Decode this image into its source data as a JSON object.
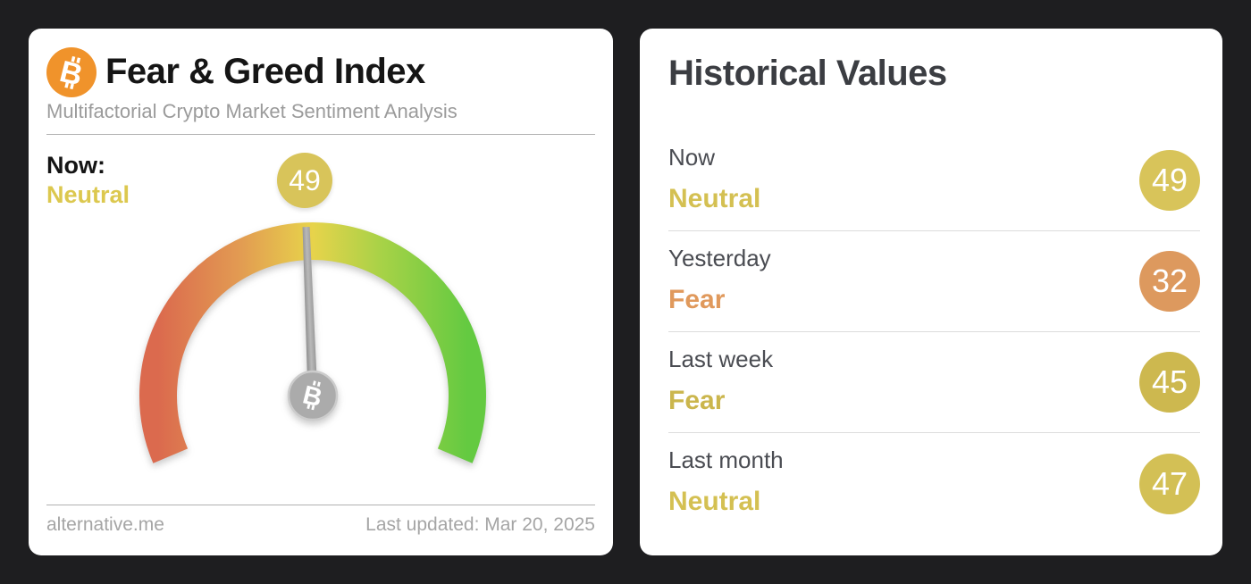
{
  "left_card": {
    "title": "Fear & Greed Index",
    "subtitle": "Multifactorial Crypto Market Sentiment Analysis",
    "icon": "bitcoin-icon",
    "btc_glyph": "B",
    "now_label": "Now:",
    "now_status": "Neutral",
    "now_status_color": "#dcc84f",
    "footer_left": "alternative.me",
    "footer_right": "Last updated: Mar 20, 2025"
  },
  "right_card": {
    "title": "Historical Values",
    "rows": [
      {
        "label": "Now",
        "status": "Neutral",
        "value": "49",
        "status_color": "#d4c052",
        "badge_color": "#d8c45a"
      },
      {
        "label": "Yesterday",
        "status": "Fear",
        "value": "32",
        "status_color": "#e0995c",
        "badge_color": "#dd995e"
      },
      {
        "label": "Last week",
        "status": "Fear",
        "value": "45",
        "status_color": "#cbb64d",
        "badge_color": "#cdb84f"
      },
      {
        "label": "Last month",
        "status": "Neutral",
        "value": "47",
        "status_color": "#d4c052",
        "badge_color": "#d3c055"
      }
    ]
  },
  "chart_data": [
    {
      "type": "gauge",
      "title": "Fear & Greed Index",
      "subtitle": "Multifactorial Crypto Market Sentiment Analysis",
      "value": 49,
      "value_label": "Neutral",
      "value_color": "#d8c45a",
      "min": 0,
      "max": 100,
      "arc_span_deg": 226,
      "scale_colors": [
        "#db6a4e",
        "#e29a52",
        "#e7d34b",
        "#a8d247",
        "#64ca41"
      ],
      "needle_color": "#9e9e9e",
      "last_updated": "Last updated: Mar 20, 2025",
      "source": "alternative.me"
    },
    {
      "type": "table",
      "title": "Historical Values",
      "categories": [
        "Now",
        "Yesterday",
        "Last week",
        "Last month"
      ],
      "values": [
        49,
        32,
        45,
        47
      ],
      "classifications": [
        "Neutral",
        "Fear",
        "Fear",
        "Neutral"
      ]
    }
  ]
}
